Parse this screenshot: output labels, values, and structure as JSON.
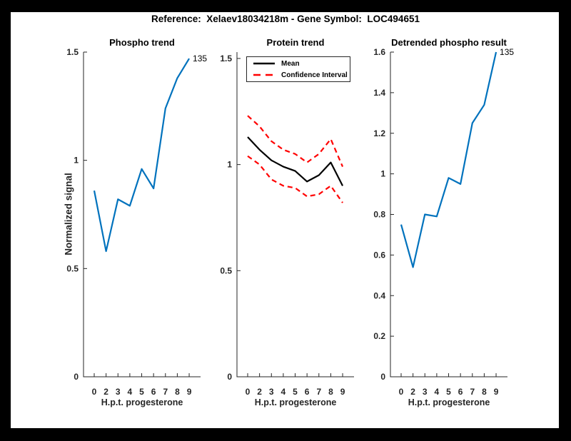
{
  "figure": {
    "title": "Reference:  Xelaev18034218m - Gene Symbol:  LOC494651",
    "background": "#000000",
    "canvas": "#ffffff"
  },
  "colors": {
    "signal_blue": "#0072BD",
    "ci_red": "#FF0000",
    "mean_black": "#000000",
    "axis": "#262626"
  },
  "chart_data": [
    {
      "type": "line",
      "title": "Phospho trend",
      "xlabel": "H.p.t. progesterone",
      "ylabel": "Normalized signal",
      "x_ticklabels": [
        "0",
        "2",
        "3",
        "4",
        "5",
        "6",
        "7",
        "8",
        "9"
      ],
      "yticks": [
        0,
        0.5,
        1,
        1.5
      ],
      "ytick_labels": [
        "0",
        "0.5",
        "1",
        "1.5"
      ],
      "ylim": [
        0,
        1.5
      ],
      "grid": false,
      "legend_position": "none",
      "end_label": "135",
      "series": [
        {
          "name": "Phospho signal",
          "color": "#0072BD",
          "style": "solid",
          "values": [
            0.86,
            0.58,
            0.82,
            0.79,
            0.96,
            0.87,
            1.24,
            1.38,
            1.47
          ]
        }
      ]
    },
    {
      "type": "line",
      "title": "Protein trend",
      "xlabel": "H.p.t. progesterone",
      "ylabel": "",
      "x_ticklabels": [
        "0",
        "2",
        "3",
        "4",
        "5",
        "6",
        "7",
        "8",
        "9"
      ],
      "yticks": [
        0,
        0.5,
        1,
        1.5
      ],
      "ytick_labels": [
        "0",
        "0.5",
        "1",
        "1.5"
      ],
      "ylim": [
        0,
        1.53
      ],
      "grid": false,
      "legend": {
        "position": "top-left",
        "entries": [
          {
            "label": "Mean",
            "color": "#000000",
            "style": "solid"
          },
          {
            "label": "Confidence Interval",
            "color": "#FF0000",
            "style": "dashed"
          }
        ]
      },
      "series": [
        {
          "name": "Mean",
          "color": "#000000",
          "style": "solid",
          "values": [
            1.13,
            1.07,
            1.02,
            0.99,
            0.97,
            0.92,
            0.95,
            1.01,
            0.9
          ]
        },
        {
          "name": "CI upper",
          "color": "#FF0000",
          "style": "dashed",
          "values": [
            1.23,
            1.18,
            1.11,
            1.07,
            1.05,
            1.01,
            1.05,
            1.12,
            0.99
          ]
        },
        {
          "name": "CI lower",
          "color": "#FF0000",
          "style": "dashed",
          "values": [
            1.04,
            1.0,
            0.93,
            0.9,
            0.89,
            0.85,
            0.86,
            0.9,
            0.82
          ]
        }
      ]
    },
    {
      "type": "line",
      "title": "Detrended phospho result",
      "xlabel": "H.p.t. progesterone",
      "ylabel": "",
      "x_ticklabels": [
        "0",
        "2",
        "3",
        "4",
        "5",
        "6",
        "7",
        "8",
        "9"
      ],
      "yticks": [
        0,
        0.2,
        0.4,
        0.6,
        0.8,
        1,
        1.2,
        1.4,
        1.6
      ],
      "ytick_labels": [
        "0",
        "0.2",
        "0.4",
        "0.6",
        "0.8",
        "1",
        "1.2",
        "1.4",
        "1.6"
      ],
      "ylim": [
        0,
        1.6
      ],
      "grid": false,
      "legend_position": "none",
      "end_label": "135",
      "series": [
        {
          "name": "Detrended phospho",
          "color": "#0072BD",
          "style": "solid",
          "values": [
            0.75,
            0.54,
            0.8,
            0.79,
            0.98,
            0.95,
            1.25,
            1.34,
            1.6
          ]
        }
      ]
    }
  ]
}
